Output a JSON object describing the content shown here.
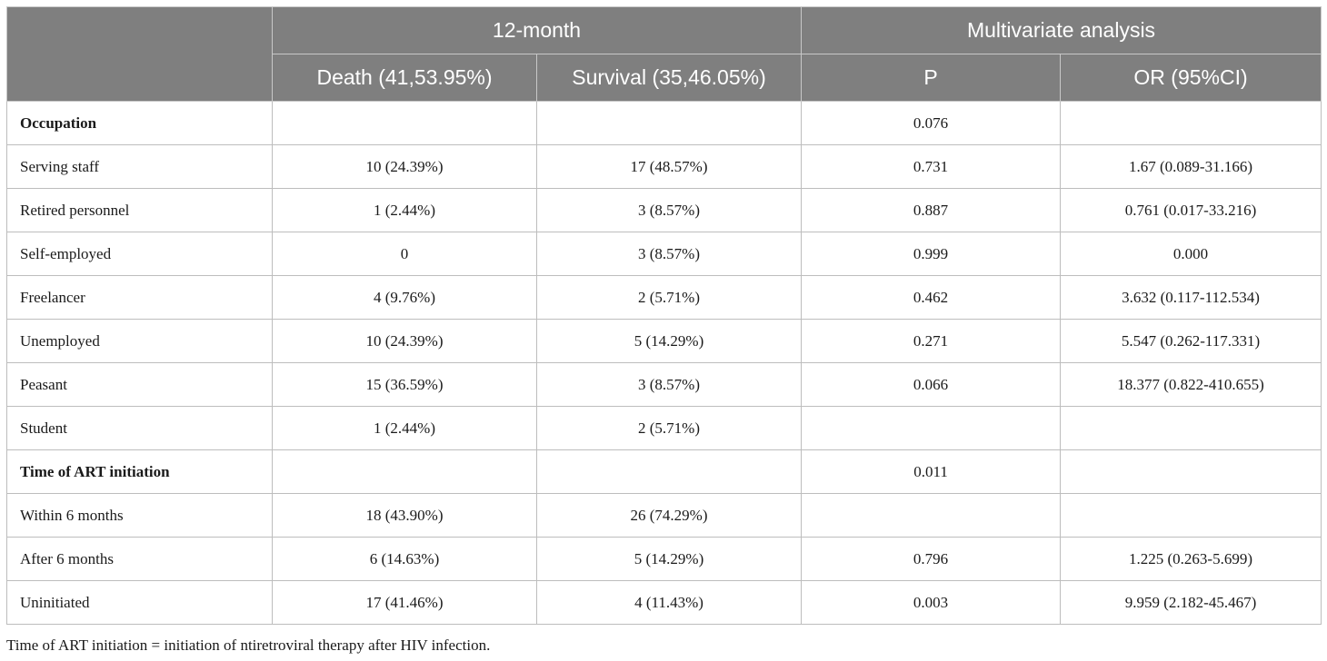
{
  "table": {
    "header": {
      "group_12month": "12-month",
      "group_multivariate": "Multivariate analysis",
      "col_death": "Death (41,53.95%)",
      "col_survival": "Survival (35,46.05%)",
      "col_p": "P",
      "col_or": "OR (95%CI)"
    },
    "rows": [
      {
        "label": "Occupation",
        "death": "",
        "survival": "",
        "p": "0.076",
        "or": ""
      },
      {
        "label": "Serving staff",
        "death": "10 (24.39%)",
        "survival": "17 (48.57%)",
        "p": "0.731",
        "or": "1.67 (0.089-31.166)"
      },
      {
        "label": "Retired personnel",
        "death": "1 (2.44%)",
        "survival": "3 (8.57%)",
        "p": "0.887",
        "or": "0.761 (0.017-33.216)"
      },
      {
        "label": "Self-employed",
        "death": "0",
        "survival": "3 (8.57%)",
        "p": "0.999",
        "or": "0.000"
      },
      {
        "label": "Freelancer",
        "death": "4 (9.76%)",
        "survival": "2 (5.71%)",
        "p": "0.462",
        "or": "3.632 (0.117-112.534)"
      },
      {
        "label": "Unemployed",
        "death": "10 (24.39%)",
        "survival": "5 (14.29%)",
        "p": "0.271",
        "or": "5.547 (0.262-117.331)"
      },
      {
        "label": "Peasant",
        "death": "15 (36.59%)",
        "survival": "3 (8.57%)",
        "p": "0.066",
        "or": "18.377 (0.822-410.655)"
      },
      {
        "label": "Student",
        "death": "1 (2.44%)",
        "survival": "2 (5.71%)",
        "p": "",
        "or": ""
      },
      {
        "label": "Time of ART initiation",
        "death": "",
        "survival": "",
        "p": "0.011",
        "or": ""
      },
      {
        "label": "Within 6 months",
        "death": "18 (43.90%)",
        "survival": "26 (74.29%)",
        "p": "",
        "or": ""
      },
      {
        "label": "After 6 months",
        "death": "6 (14.63%)",
        "survival": "5 (14.29%)",
        "p": "0.796",
        "or": "1.225 (0.263-5.699)"
      },
      {
        "label": "Uninitiated",
        "death": "17 (41.46%)",
        "survival": "4 (11.43%)",
        "p": "0.003",
        "or": "9.959 (2.182-45.467)"
      }
    ]
  },
  "footnote": "Time of ART initiation = initiation of ntiretroviral therapy after HIV infection."
}
